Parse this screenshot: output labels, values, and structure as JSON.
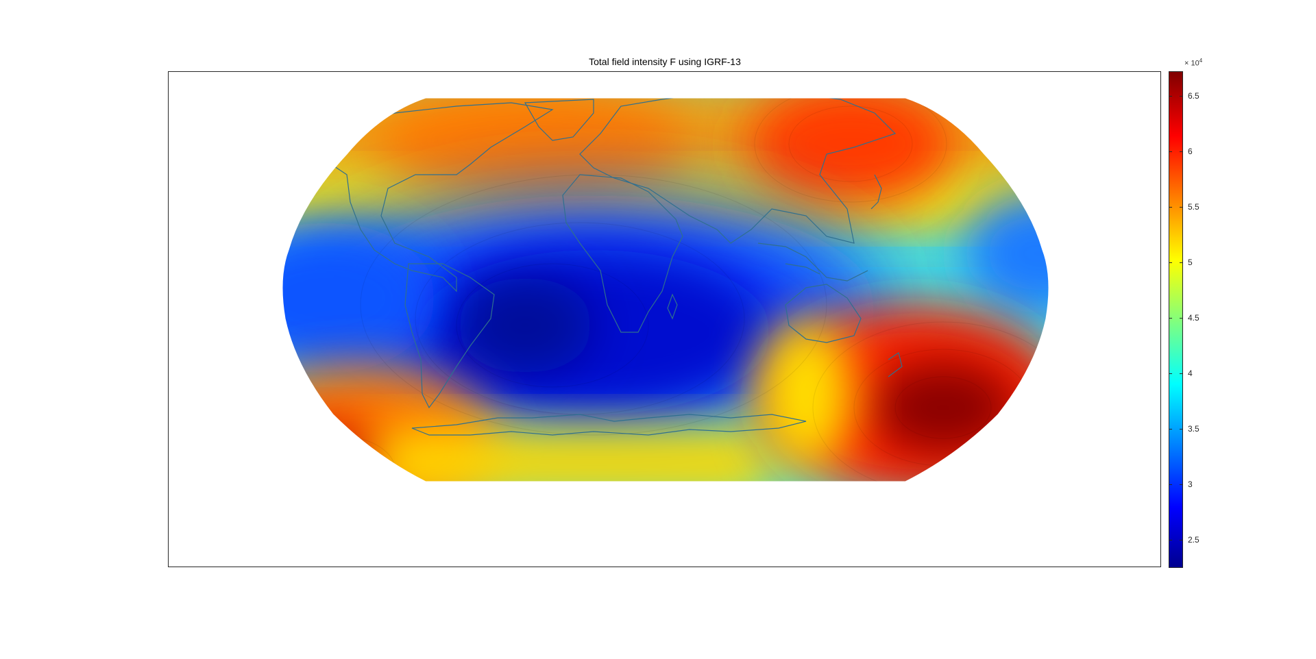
{
  "figure": {
    "title": "Total field intensity F using IGRF-13"
  },
  "colorbar": {
    "multiplier_base": "× 10",
    "multiplier_exponent": "4",
    "ticks": [
      "6.5",
      "6",
      "5.5",
      "5",
      "4.5",
      "4",
      "3.5",
      "3",
      "2.5"
    ],
    "tick_values": [
      6.5,
      6,
      5.5,
      5,
      4.5,
      4,
      3.5,
      3,
      2.5
    ],
    "range": [
      2.25,
      6.72
    ],
    "colormap": "jet"
  },
  "map": {
    "projection": "Robinson",
    "field": "Total field intensity F",
    "model": "IGRF-13",
    "features": [
      "coastlines",
      "contour-lines"
    ],
    "coastline_color": "#2f6f8f",
    "background_color": "#ffffff"
  }
}
